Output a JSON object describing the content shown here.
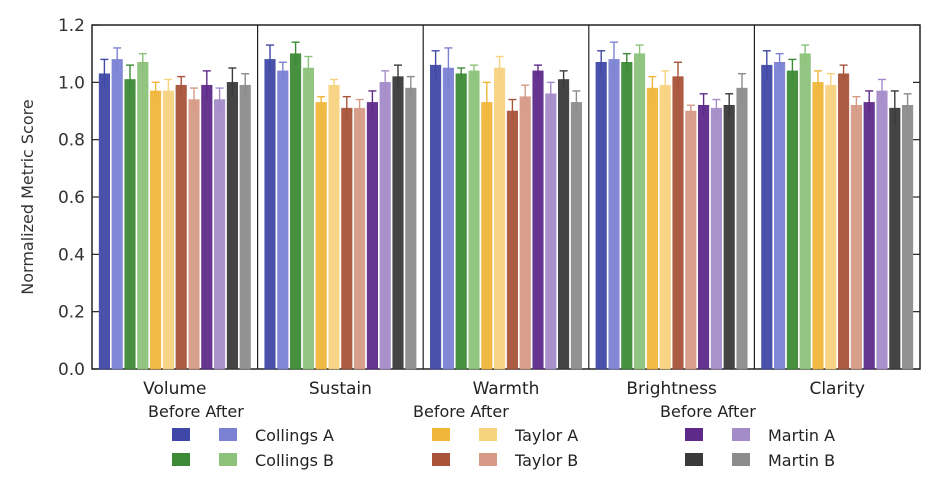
{
  "chart_data": {
    "type": "bar",
    "title": "",
    "xlabel": "",
    "ylabel": "Normalized Metric Score",
    "ylim": [
      0,
      1.2
    ],
    "yticks": [
      "0.0",
      "0.2",
      "0.4",
      "0.6",
      "0.8",
      "1.0",
      "1.2"
    ],
    "categories": [
      "Volume",
      "Sustain",
      "Warmth",
      "Brightness",
      "Clarity"
    ],
    "series": [
      {
        "name": "Collings A",
        "condition": "Before",
        "color": "#3f48a6",
        "values": [
          1.03,
          1.08,
          1.06,
          1.07,
          1.06
        ],
        "errors": [
          0.05,
          0.05,
          0.05,
          0.04,
          0.05
        ]
      },
      {
        "name": "Collings A",
        "condition": "After",
        "color": "#7b82d3",
        "values": [
          1.08,
          1.04,
          1.05,
          1.08,
          1.07
        ],
        "errors": [
          0.04,
          0.03,
          0.07,
          0.06,
          0.03
        ]
      },
      {
        "name": "Collings B",
        "condition": "Before",
        "color": "#3c8a35",
        "values": [
          1.01,
          1.1,
          1.03,
          1.07,
          1.04
        ],
        "errors": [
          0.05,
          0.04,
          0.02,
          0.03,
          0.04
        ]
      },
      {
        "name": "Collings B",
        "condition": "After",
        "color": "#8cc27a",
        "values": [
          1.07,
          1.05,
          1.04,
          1.1,
          1.1
        ],
        "errors": [
          0.03,
          0.04,
          0.02,
          0.03,
          0.03
        ]
      },
      {
        "name": "Taylor A",
        "condition": "Before",
        "color": "#f0b63a",
        "values": [
          0.97,
          0.93,
          0.93,
          0.98,
          1.0
        ],
        "errors": [
          0.03,
          0.02,
          0.07,
          0.04,
          0.04
        ]
      },
      {
        "name": "Taylor A",
        "condition": "After",
        "color": "#f7d27f",
        "values": [
          0.97,
          0.99,
          1.05,
          0.99,
          0.99
        ],
        "errors": [
          0.04,
          0.02,
          0.04,
          0.05,
          0.04
        ]
      },
      {
        "name": "Taylor B",
        "condition": "Before",
        "color": "#a9533a",
        "values": [
          0.99,
          0.91,
          0.9,
          1.02,
          1.03
        ],
        "errors": [
          0.03,
          0.04,
          0.04,
          0.05,
          0.03
        ]
      },
      {
        "name": "Taylor B",
        "condition": "After",
        "color": "#d69a86",
        "values": [
          0.94,
          0.91,
          0.95,
          0.9,
          0.92
        ],
        "errors": [
          0.04,
          0.03,
          0.04,
          0.02,
          0.03
        ]
      },
      {
        "name": "Martin A",
        "condition": "Before",
        "color": "#5e2a8a",
        "values": [
          0.99,
          0.93,
          1.04,
          0.92,
          0.93
        ],
        "errors": [
          0.05,
          0.04,
          0.02,
          0.04,
          0.04
        ]
      },
      {
        "name": "Martin A",
        "condition": "After",
        "color": "#a48cc9",
        "values": [
          0.94,
          1.0,
          0.96,
          0.91,
          0.97
        ],
        "errors": [
          0.04,
          0.04,
          0.04,
          0.03,
          0.04
        ]
      },
      {
        "name": "Martin B",
        "condition": "Before",
        "color": "#3a3a3a",
        "values": [
          1.0,
          1.02,
          1.01,
          0.92,
          0.91
        ],
        "errors": [
          0.05,
          0.04,
          0.03,
          0.04,
          0.06
        ]
      },
      {
        "name": "Martin B",
        "condition": "After",
        "color": "#8c8c8c",
        "values": [
          0.99,
          0.98,
          0.93,
          0.98,
          0.92
        ],
        "errors": [
          0.04,
          0.04,
          0.04,
          0.05,
          0.04
        ]
      }
    ],
    "legend": {
      "header": "Before After",
      "groups": [
        {
          "entries": [
            {
              "label": "Collings A",
              "before": "#3f48a6",
              "after": "#7b82d3"
            },
            {
              "label": "Collings B",
              "before": "#3c8a35",
              "after": "#8cc27a"
            }
          ]
        },
        {
          "entries": [
            {
              "label": "Taylor A",
              "before": "#f0b63a",
              "after": "#f7d27f"
            },
            {
              "label": "Taylor B",
              "before": "#a9533a",
              "after": "#d69a86"
            }
          ]
        },
        {
          "entries": [
            {
              "label": "Martin A",
              "before": "#5e2a8a",
              "after": "#a48cc9"
            },
            {
              "label": "Martin B",
              "before": "#3a3a3a",
              "after": "#8c8c8c"
            }
          ]
        }
      ],
      "placement": "bottom"
    },
    "grid": false
  }
}
